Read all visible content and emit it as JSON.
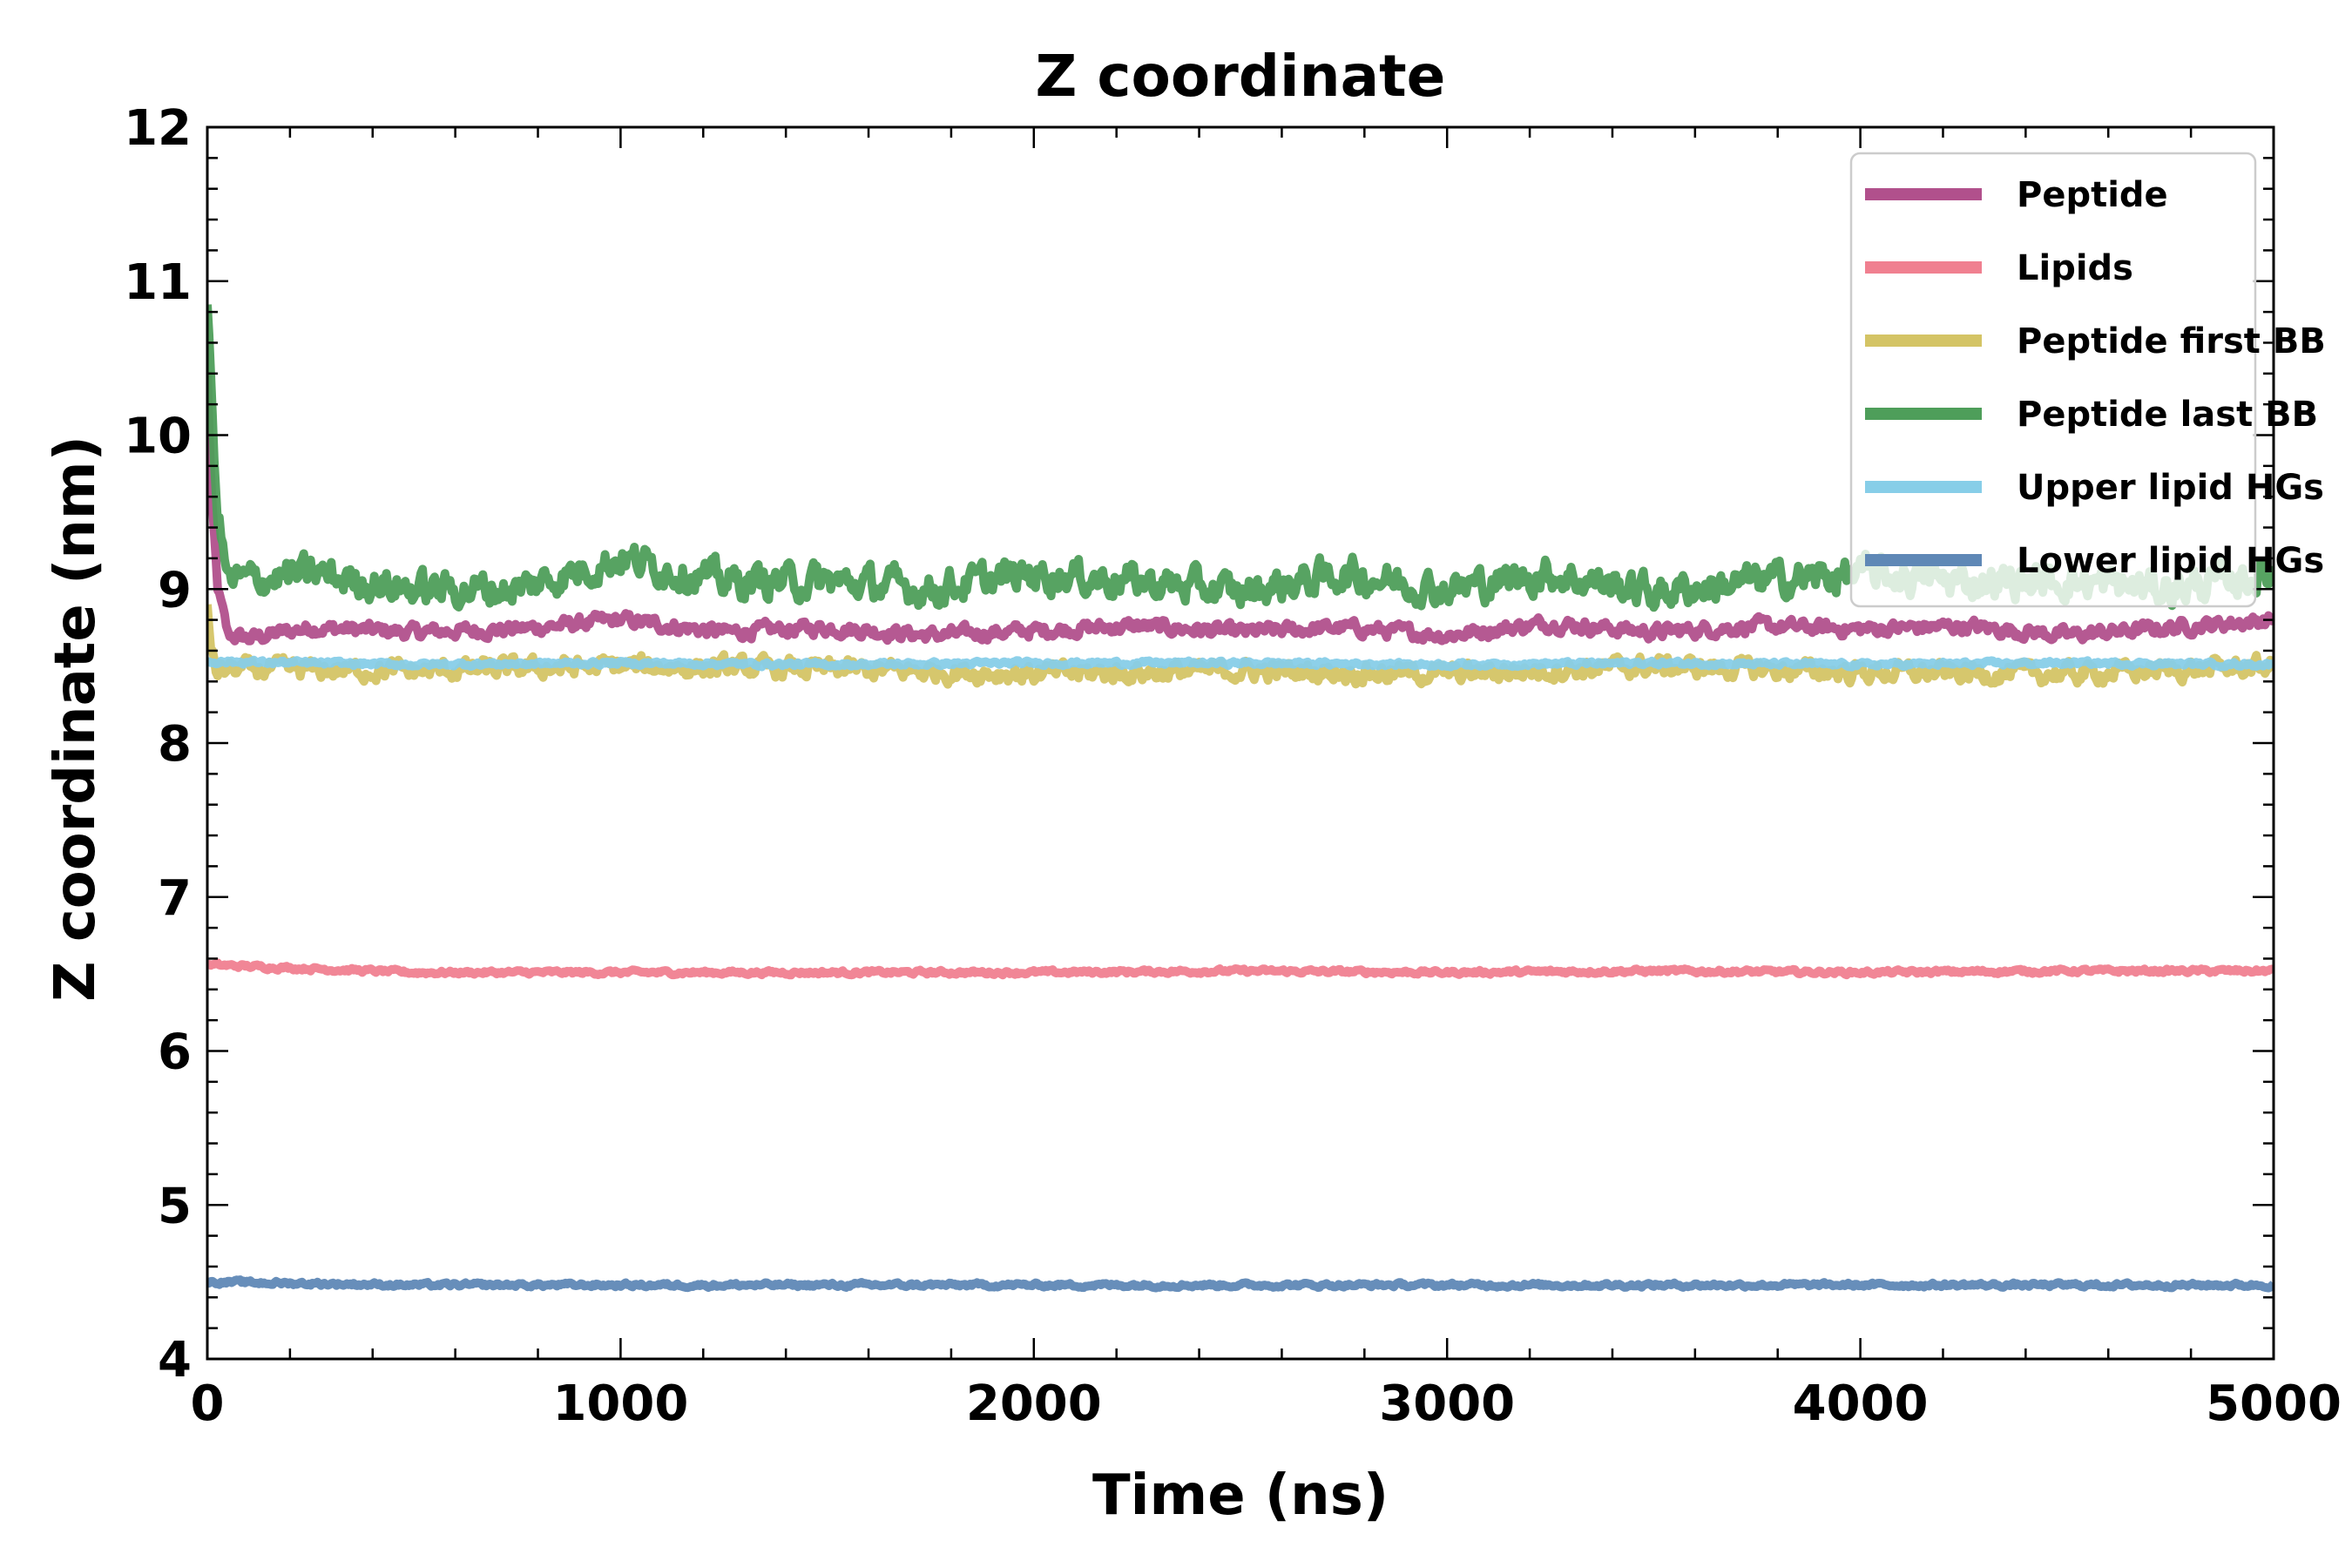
{
  "chart_data": {
    "type": "line",
    "title": "Z coordinate",
    "xlabel": "Time (ns)",
    "ylabel": "Z coordinate (nm)",
    "xlim": [
      0,
      5000
    ],
    "ylim": [
      4,
      12
    ],
    "xticks": [
      0,
      1000,
      2000,
      3000,
      4000,
      5000
    ],
    "yticks": [
      4,
      5,
      6,
      7,
      8,
      9,
      10,
      11,
      12
    ],
    "xtick_labels": [
      "0",
      "1000",
      "2000",
      "3000",
      "4000",
      "5000"
    ],
    "ytick_labels": [
      "4",
      "5",
      "6",
      "7",
      "8",
      "9",
      "10",
      "11",
      "12"
    ],
    "grid": false,
    "legend_position": "top-right",
    "series": [
      {
        "name": "Peptide",
        "color": "#b1508c",
        "x": [
          0,
          10,
          25,
          50,
          100,
          250,
          500,
          750,
          1000,
          1250,
          1500,
          1750,
          2000,
          2250,
          2500,
          2750,
          3000,
          3250,
          3500,
          3750,
          4000,
          4250,
          4500,
          4750,
          5000
        ],
        "values": [
          10.4,
          9.6,
          9.0,
          8.7,
          8.68,
          8.75,
          8.72,
          8.74,
          8.8,
          8.72,
          8.75,
          8.7,
          8.73,
          8.76,
          8.72,
          8.75,
          8.7,
          8.78,
          8.72,
          8.76,
          8.74,
          8.76,
          8.7,
          8.75,
          8.8
        ],
        "noise": 0.05
      },
      {
        "name": "Lipids",
        "color": "#f08090",
        "x": [
          0,
          500,
          1000,
          1500,
          2000,
          2500,
          3000,
          3500,
          4000,
          4500,
          5000
        ],
        "values": [
          6.56,
          6.51,
          6.51,
          6.51,
          6.51,
          6.52,
          6.51,
          6.52,
          6.51,
          6.52,
          6.52
        ],
        "noise": 0.015
      },
      {
        "name": "Peptide first BB",
        "color": "#d4c465",
        "x": [
          0,
          10,
          25,
          50,
          500,
          1000,
          1500,
          2000,
          2500,
          3000,
          3500,
          4000,
          4500,
          5000
        ],
        "values": [
          8.9,
          8.6,
          8.45,
          8.48,
          8.47,
          8.5,
          8.48,
          8.45,
          8.47,
          8.45,
          8.5,
          8.46,
          8.45,
          8.5
        ],
        "noise": 0.07
      },
      {
        "name": "Peptide last BB",
        "color": "#4e9e5a",
        "x": [
          0,
          10,
          25,
          50,
          250,
          500,
          750,
          1000,
          1250,
          1500,
          1750,
          2000,
          2250,
          2500,
          2750,
          3000,
          3250,
          3500,
          3750,
          4000,
          4250,
          4500,
          4750,
          5000
        ],
        "values": [
          10.9,
          10.2,
          9.5,
          9.05,
          9.1,
          9.0,
          9.0,
          9.2,
          9.05,
          9.05,
          9.0,
          9.1,
          9.05,
          8.98,
          9.1,
          9.0,
          9.1,
          8.98,
          9.05,
          9.1,
          9.05,
          9.05,
          9.0,
          9.1
        ],
        "noise": 0.12
      },
      {
        "name": "Upper lipid HGs",
        "color": "#87cee8",
        "x": [
          0,
          500,
          1000,
          1500,
          2000,
          2500,
          3000,
          3500,
          4000,
          4500,
          5000
        ],
        "values": [
          8.53,
          8.51,
          8.52,
          8.51,
          8.52,
          8.52,
          8.51,
          8.52,
          8.51,
          8.52,
          8.51
        ],
        "noise": 0.015
      },
      {
        "name": "Lower lipid HGs",
        "color": "#5f88b6",
        "x": [
          0,
          500,
          1000,
          1500,
          2000,
          2500,
          3000,
          3500,
          4000,
          4500,
          5000
        ],
        "values": [
          4.5,
          4.48,
          4.48,
          4.48,
          4.48,
          4.48,
          4.48,
          4.48,
          4.48,
          4.48,
          4.48
        ],
        "noise": 0.015
      }
    ]
  }
}
